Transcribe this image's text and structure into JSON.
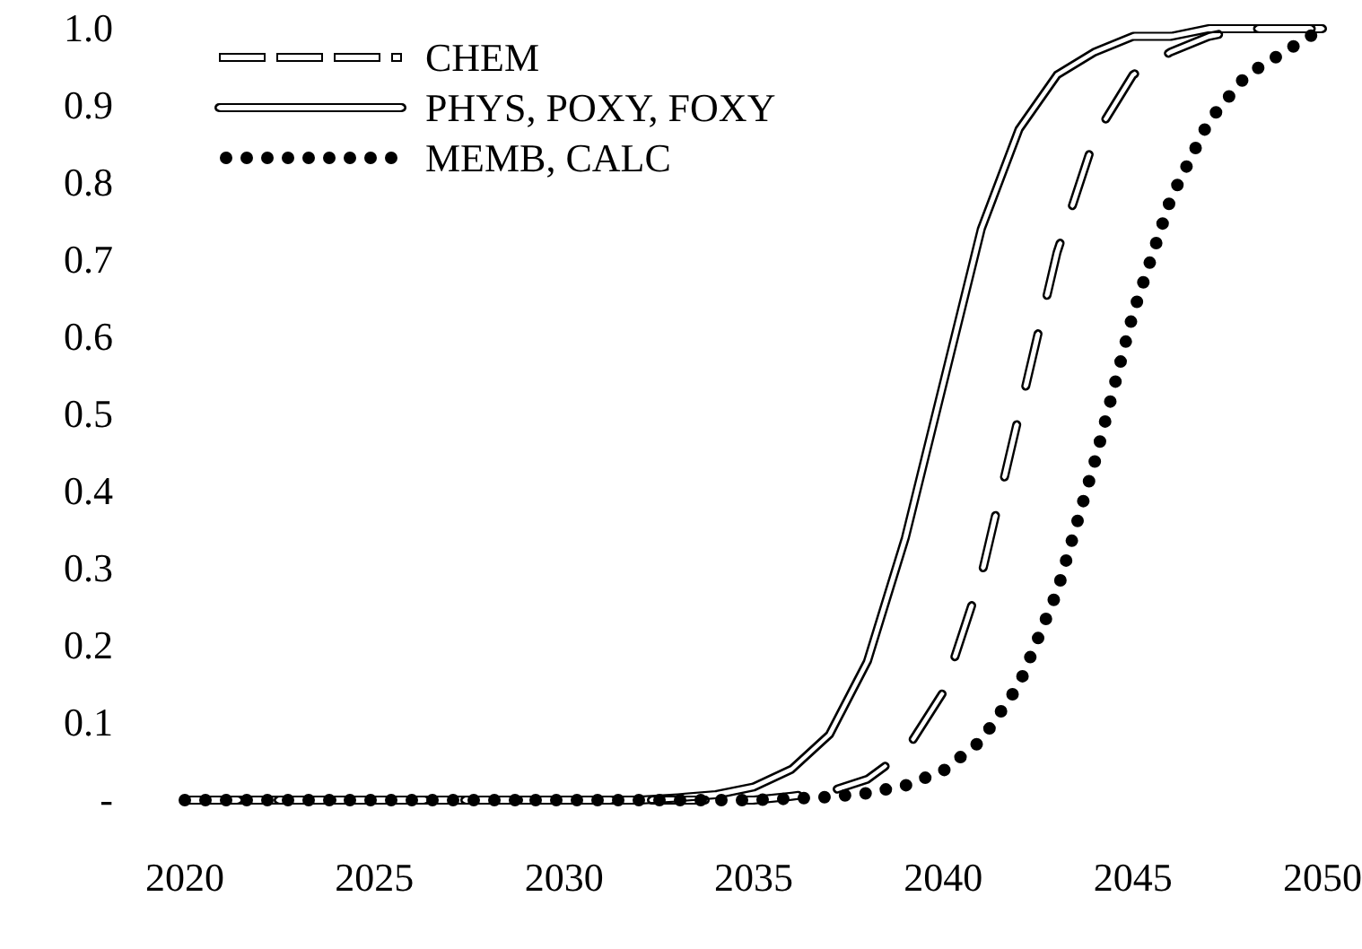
{
  "chart_data": {
    "type": "line",
    "x": [
      2020,
      2021,
      2022,
      2023,
      2024,
      2025,
      2026,
      2027,
      2028,
      2029,
      2030,
      2031,
      2032,
      2033,
      2034,
      2035,
      2036,
      2037,
      2038,
      2039,
      2040,
      2041,
      2042,
      2043,
      2044,
      2045,
      2046,
      2047,
      2048,
      2049,
      2050
    ],
    "series": [
      {
        "name": "CHEM",
        "color": "#000000",
        "line_style": "dashed",
        "values": [
          0,
          0,
          0,
          0,
          0,
          0,
          0,
          0,
          0,
          0,
          0,
          0,
          0,
          0,
          0,
          0,
          0.005,
          0.011,
          0.027,
          0.063,
          0.14,
          0.29,
          0.5,
          0.71,
          0.86,
          0.94,
          0.97,
          0.99,
          1.0,
          1.0,
          1.0
        ]
      },
      {
        "name": "PHYS, POXY, FOXY",
        "color": "#000000",
        "line_style": "solid",
        "values": [
          0,
          0,
          0,
          0,
          0,
          0,
          0,
          0,
          0,
          0,
          0,
          0,
          0,
          0.003,
          0.007,
          0.017,
          0.04,
          0.085,
          0.18,
          0.34,
          0.54,
          0.74,
          0.87,
          0.94,
          0.97,
          0.99,
          0.99,
          1.0,
          1.0,
          1.0,
          1.0
        ]
      },
      {
        "name": "MEMB, CALC",
        "color": "#000000",
        "line_style": "dotted",
        "values": [
          0,
          0,
          0,
          0,
          0,
          0,
          0,
          0,
          0,
          0,
          0,
          0,
          0,
          0,
          0,
          0,
          0.002,
          0.004,
          0.009,
          0.019,
          0.038,
          0.077,
          0.15,
          0.27,
          0.44,
          0.63,
          0.78,
          0.88,
          0.94,
          0.97,
          1.0
        ]
      }
    ],
    "xlim": [
      2020,
      2050
    ],
    "xticks": [
      2020,
      2025,
      2030,
      2035,
      2040,
      2045,
      2050
    ],
    "ylim": [
      0,
      1
    ],
    "yticks": [
      {
        "value": 0,
        "label": "-"
      },
      {
        "value": 0.1,
        "label": "0.1"
      },
      {
        "value": 0.2,
        "label": "0.2"
      },
      {
        "value": 0.3,
        "label": "0.3"
      },
      {
        "value": 0.4,
        "label": "0.4"
      },
      {
        "value": 0.5,
        "label": "0.5"
      },
      {
        "value": 0.6,
        "label": "0.6"
      },
      {
        "value": 0.7,
        "label": "0.7"
      },
      {
        "value": 0.8,
        "label": "0.8"
      },
      {
        "value": 0.9,
        "label": "0.9"
      },
      {
        "value": 1,
        "label": "1.0"
      }
    ],
    "grid": false,
    "legend": "top left",
    "marker": "none"
  }
}
